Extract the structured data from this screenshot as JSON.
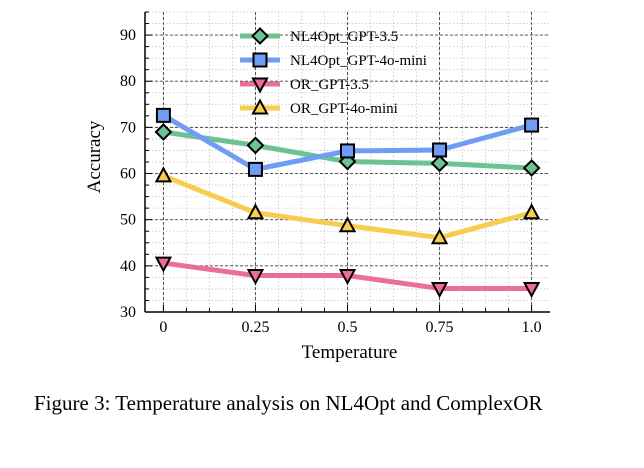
{
  "chart_data": {
    "type": "line",
    "categories": [
      "0",
      "0.25",
      "0.5",
      "0.75",
      "1.0"
    ],
    "x": [
      0,
      0.25,
      0.5,
      0.75,
      1.0
    ],
    "xlabel": "Temperature",
    "ylabel": "Accuracy",
    "ylim": [
      30,
      95
    ],
    "yticks": [
      30,
      40,
      50,
      60,
      70,
      80,
      90
    ],
    "grid": true,
    "legend_position": "top-center",
    "series": [
      {
        "name": "NL4Opt_GPT-3.5",
        "color": "#6cc391",
        "marker": "diamond",
        "values": [
          69.0,
          66.1,
          62.6,
          62.2,
          61.2
        ]
      },
      {
        "name": "NL4Opt_GPT-4o-mini",
        "color": "#6f9cf4",
        "marker": "square",
        "values": [
          72.6,
          60.9,
          64.9,
          65.1,
          70.5
        ]
      },
      {
        "name": "OR_GPT-3.5",
        "color": "#e96e9b",
        "marker": "triangle-down",
        "values": [
          40.6,
          37.9,
          37.9,
          35.1,
          35.1
        ]
      },
      {
        "name": "OR_GPT-4o-mini",
        "color": "#f6cd4e",
        "marker": "triangle-up",
        "values": [
          59.5,
          51.5,
          48.7,
          46.1,
          51.5
        ]
      }
    ]
  },
  "caption": "Figure 3: Temperature analysis on NL4Opt and ComplexOR"
}
